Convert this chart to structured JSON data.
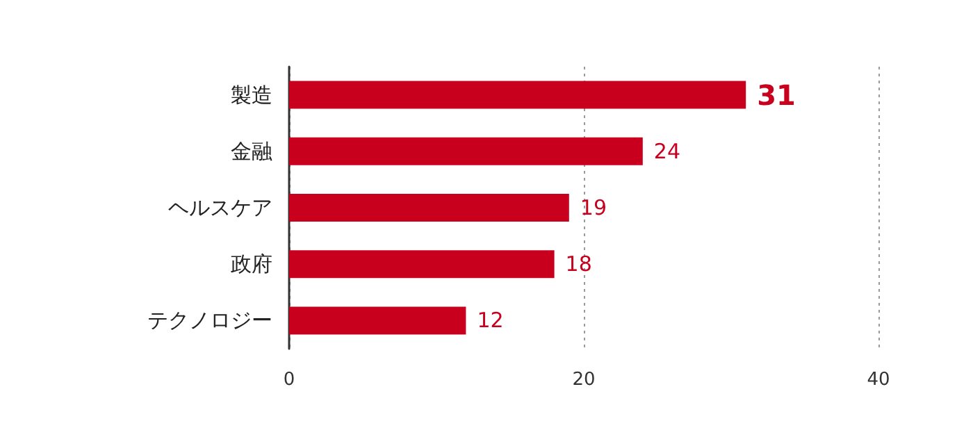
{
  "chart_data": {
    "type": "bar",
    "orientation": "horizontal",
    "categories": [
      "製造",
      "金融",
      "ヘルスケア",
      "政府",
      "テクノロジー"
    ],
    "values": [
      31,
      24,
      19,
      18,
      12
    ],
    "color": "#c8001e",
    "xlim": [
      0,
      40
    ],
    "xticks": [
      0,
      20,
      40
    ],
    "grid": "x",
    "data_labels": true
  }
}
